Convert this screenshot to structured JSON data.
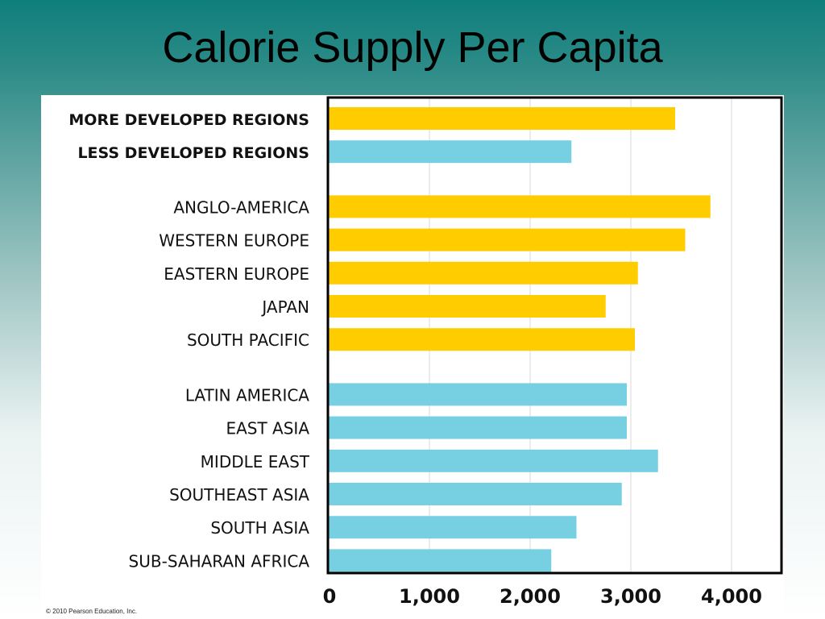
{
  "title": "Calorie Supply Per Capita",
  "copyright": "© 2010 Pearson Education, Inc.",
  "colors": {
    "more_developed": "#ffcc00",
    "less_developed": "#76d0e2",
    "grid": "#d9d9d9",
    "frame": "#000000"
  },
  "chart_data": {
    "type": "bar",
    "orientation": "horizontal",
    "xlim": [
      0,
      4500
    ],
    "x_ticks": [
      {
        "value": 0,
        "label": "0"
      },
      {
        "value": 1000,
        "label": "1,000"
      },
      {
        "value": 2000,
        "label": "2,000"
      },
      {
        "value": 3000,
        "label": "3,000"
      },
      {
        "value": 4000,
        "label": "4,000"
      }
    ],
    "grid": true,
    "groups": [
      {
        "items": [
          {
            "label": "MORE DEVELOPED REGIONS",
            "value": 3440,
            "color": "#ffcc00",
            "bold": true
          },
          {
            "label": "LESS DEVELOPED REGIONS",
            "value": 2410,
            "color": "#76d0e2",
            "bold": true
          }
        ]
      },
      {
        "items": [
          {
            "label": "ANGLO-AMERICA",
            "value": 3790,
            "color": "#ffcc00"
          },
          {
            "label": "WESTERN EUROPE",
            "value": 3540,
            "color": "#ffcc00"
          },
          {
            "label": "EASTERN EUROPE",
            "value": 3070,
            "color": "#ffcc00"
          },
          {
            "label": "JAPAN",
            "value": 2750,
            "color": "#ffcc00"
          },
          {
            "label": "SOUTH PACIFIC",
            "value": 3040,
            "color": "#ffcc00"
          }
        ]
      },
      {
        "items": [
          {
            "label": "LATIN AMERICA",
            "value": 2960,
            "color": "#76d0e2"
          },
          {
            "label": "EAST ASIA",
            "value": 2960,
            "color": "#76d0e2"
          },
          {
            "label": "MIDDLE EAST",
            "value": 3270,
            "color": "#76d0e2"
          },
          {
            "label": "SOUTHEAST ASIA",
            "value": 2910,
            "color": "#76d0e2"
          },
          {
            "label": "SOUTH ASIA",
            "value": 2460,
            "color": "#76d0e2"
          },
          {
            "label": "SUB-SAHARAN AFRICA",
            "value": 2210,
            "color": "#76d0e2"
          }
        ]
      }
    ]
  }
}
